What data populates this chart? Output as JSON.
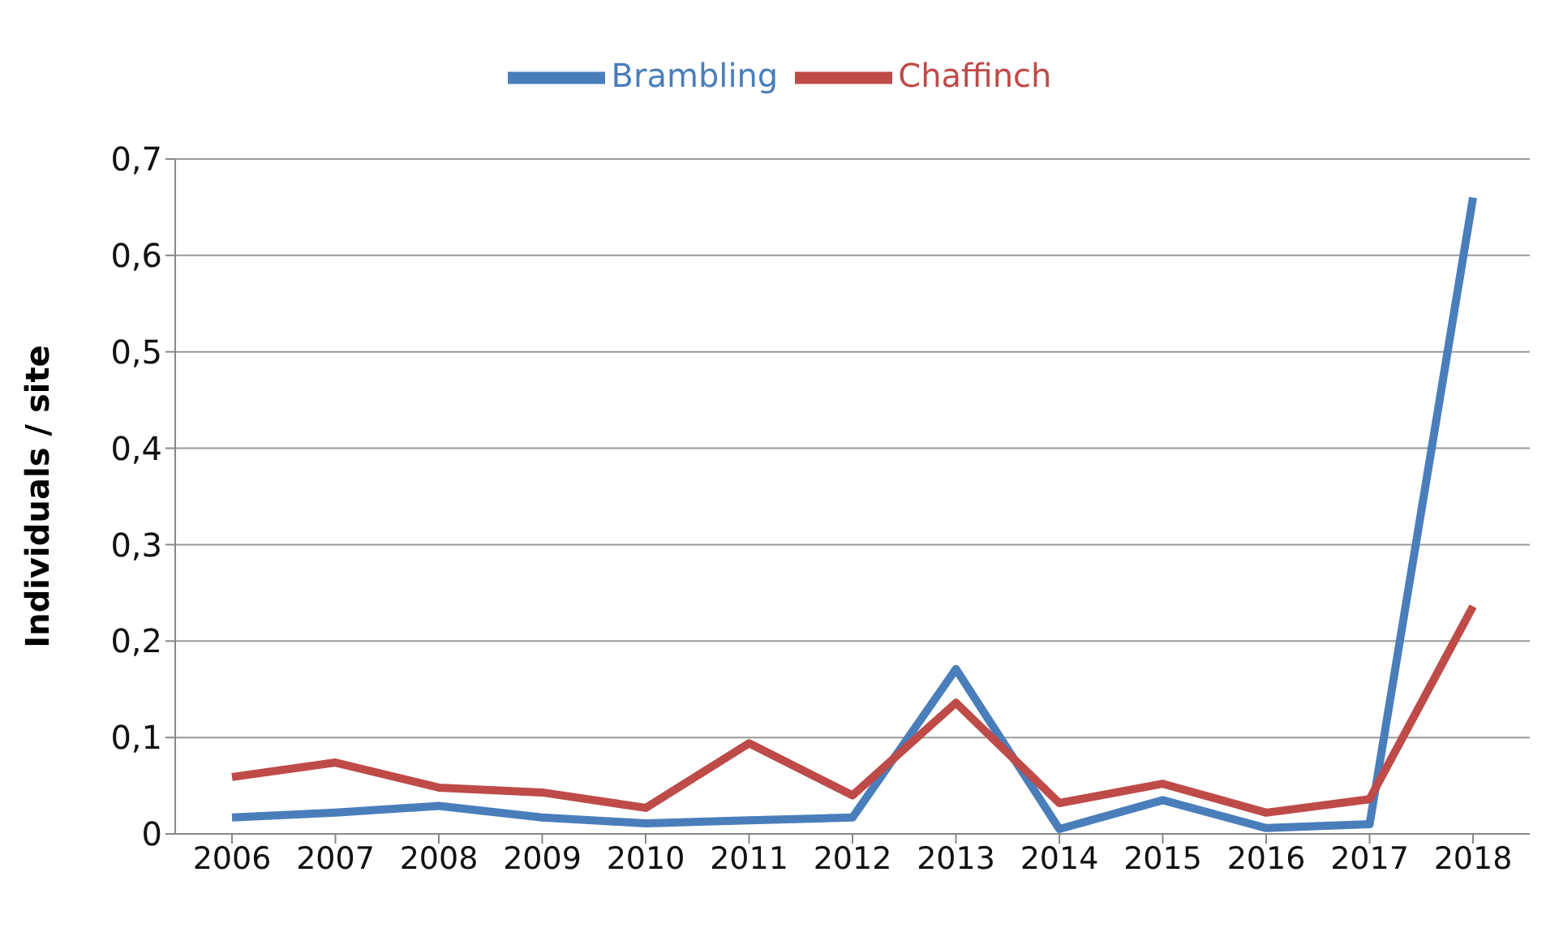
{
  "chart_data": {
    "type": "line",
    "ylabel": "Individuals / site",
    "categories": [
      "2006",
      "2007",
      "2008",
      "2009",
      "2010",
      "2011",
      "2012",
      "2013",
      "2014",
      "2015",
      "2016",
      "2017",
      "2018"
    ],
    "series": [
      {
        "name": "Brambling",
        "color": "#4a7ebb",
        "values": [
          0.017,
          0.022,
          0.029,
          0.017,
          0.011,
          0.014,
          0.017,
          0.171,
          0.005,
          0.035,
          0.006,
          0.01,
          0.66
        ]
      },
      {
        "name": "Chaffinch",
        "color": "#be4b48",
        "values": [
          0.059,
          0.074,
          0.048,
          0.043,
          0.027,
          0.094,
          0.04,
          0.136,
          0.032,
          0.052,
          0.022,
          0.036,
          0.236
        ]
      }
    ],
    "ylim": [
      0,
      0.7
    ],
    "yticks": [
      0,
      {
        "value": 0.1,
        "label": "0,1"
      },
      {
        "value": 0.2,
        "label": "0,2"
      },
      {
        "value": 0.3,
        "label": "0,3"
      },
      {
        "value": 0.4,
        "label": "0,4"
      },
      {
        "value": 0.5,
        "label": "0,5"
      },
      {
        "value": 0.6,
        "label": "0,6"
      },
      {
        "value": 0.7,
        "label": "0,7"
      }
    ],
    "grid": "y",
    "legend": "top",
    "marker": "none",
    "line_style": "solid"
  }
}
